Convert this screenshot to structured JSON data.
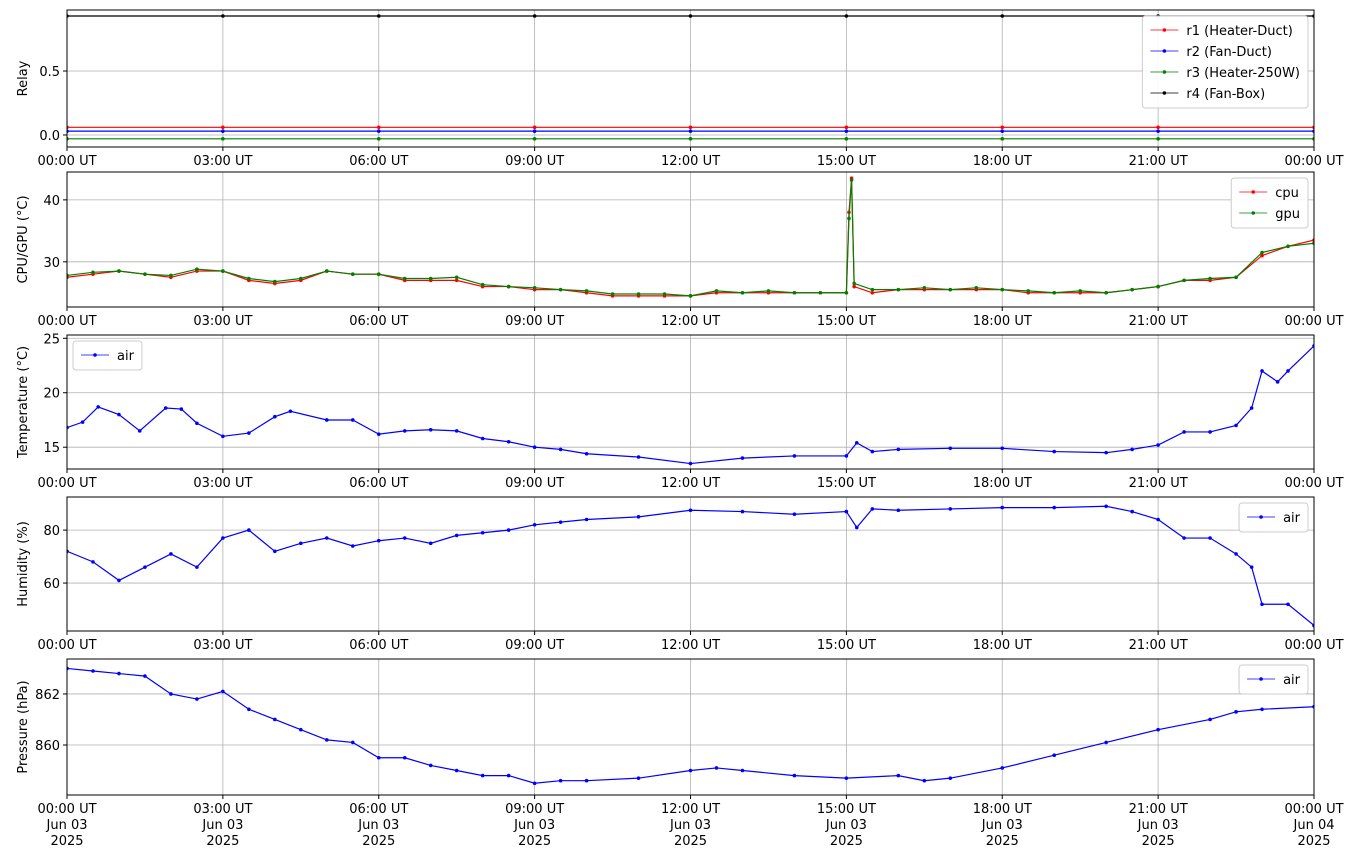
{
  "chart_data": [
    {
      "type": "line",
      "ylabel": "Relay",
      "xlim": [
        0,
        24
      ],
      "ylim": [
        -0.094,
        0.977
      ],
      "yticks": [
        {
          "value": 0,
          "label": "0.0"
        },
        0.5
      ],
      "grid": true,
      "legend": "upper right",
      "xticks": [
        {
          "value": 0,
          "label": "00:00 UT"
        },
        {
          "value": 3,
          "label": "03:00 UT"
        },
        {
          "value": 6,
          "label": "06:00 UT"
        },
        {
          "value": 9,
          "label": "09:00 UT"
        },
        {
          "value": 12,
          "label": "12:00 UT"
        },
        {
          "value": 15,
          "label": "15:00 UT"
        },
        {
          "value": 18,
          "label": "18:00 UT"
        },
        {
          "value": 21,
          "label": "21:00 UT"
        },
        {
          "value": 24,
          "label": "00:00 UT"
        }
      ],
      "x": [
        0,
        3,
        6,
        9,
        12,
        15,
        18,
        21,
        24
      ],
      "series": [
        {
          "name": "r1 (Heater-Duct)",
          "color": "#ff0000",
          "values": [
            0.06,
            0.06,
            0.06,
            0.06,
            0.06,
            0.06,
            0.06,
            0.06,
            0.06
          ]
        },
        {
          "name": "r2 (Fan-Duct)",
          "color": "#0000ff",
          "values": [
            0.03,
            0.03,
            0.03,
            0.03,
            0.03,
            0.03,
            0.03,
            0.03,
            0.03
          ]
        },
        {
          "name": "r3 (Heater-250W)",
          "color": "#008000",
          "values": [
            -0.03,
            -0.03,
            -0.03,
            -0.03,
            -0.03,
            -0.03,
            -0.03,
            -0.03,
            -0.03
          ]
        },
        {
          "name": "r4 (Fan-Box)",
          "color": "#000000",
          "values": [
            0.93,
            0.93,
            0.93,
            0.93,
            0.93,
            0.93,
            0.93,
            0.93,
            0.93
          ]
        }
      ]
    },
    {
      "type": "line",
      "ylabel": "CPU/GPU (°C)",
      "xlim": [
        0,
        24
      ],
      "ylim": [
        22.7,
        44.5
      ],
      "yticks": [
        30,
        40
      ],
      "grid": true,
      "legend": "upper right",
      "xticks": [
        {
          "value": 0,
          "label": "00:00 UT"
        },
        {
          "value": 3,
          "label": "03:00 UT"
        },
        {
          "value": 6,
          "label": "06:00 UT"
        },
        {
          "value": 9,
          "label": "09:00 UT"
        },
        {
          "value": 12,
          "label": "12:00 UT"
        },
        {
          "value": 15,
          "label": "15:00 UT"
        },
        {
          "value": 18,
          "label": "18:00 UT"
        },
        {
          "value": 21,
          "label": "21:00 UT"
        },
        {
          "value": 24,
          "label": "00:00 UT"
        }
      ],
      "x": [
        0,
        0.5,
        1,
        1.5,
        2,
        2.5,
        3,
        3.5,
        4,
        4.5,
        5,
        5.5,
        6,
        6.5,
        7,
        7.5,
        8,
        8.5,
        9,
        9.5,
        10,
        10.5,
        11,
        11.5,
        12,
        12.5,
        13,
        13.5,
        14,
        14.5,
        15,
        15.05,
        15.1,
        15.15,
        15.5,
        16,
        16.5,
        17,
        17.5,
        18,
        18.5,
        19,
        19.5,
        20,
        20.5,
        21,
        21.5,
        22,
        22.5,
        23,
        23.5,
        24
      ],
      "series": [
        {
          "name": "cpu",
          "color": "#ff0000",
          "values": [
            27.5,
            28,
            28.5,
            28,
            27.5,
            28.5,
            28.5,
            27,
            26.5,
            27,
            28.5,
            28,
            28,
            27,
            27,
            27,
            26,
            26,
            25.5,
            25.5,
            25,
            24.5,
            24.5,
            24.5,
            24.5,
            25,
            25,
            25,
            25,
            25,
            25,
            38,
            43.5,
            26,
            25,
            25.5,
            25.5,
            25.5,
            25.5,
            25.5,
            25,
            25,
            25,
            25,
            25.5,
            26,
            27,
            27,
            27.5,
            31,
            32.5,
            33.5
          ]
        },
        {
          "name": "gpu",
          "color": "#008000",
          "values": [
            27.8,
            28.3,
            28.5,
            28,
            27.8,
            28.8,
            28.5,
            27.3,
            26.8,
            27.3,
            28.5,
            28,
            28,
            27.3,
            27.3,
            27.5,
            26.3,
            26,
            25.8,
            25.5,
            25.3,
            24.8,
            24.8,
            24.8,
            24.5,
            25.3,
            25,
            25.3,
            25,
            25,
            25,
            37,
            43.2,
            26.5,
            25.5,
            25.5,
            25.8,
            25.5,
            25.8,
            25.5,
            25.3,
            25,
            25.3,
            25,
            25.5,
            26,
            27,
            27.3,
            27.5,
            31.5,
            32.5,
            33
          ]
        }
      ]
    },
    {
      "type": "line",
      "ylabel": "Temperature (°C)",
      "xlim": [
        0,
        24
      ],
      "ylim": [
        13.0,
        25.3
      ],
      "yticks": [
        15,
        20,
        25
      ],
      "grid": true,
      "legend": "upper left",
      "xticks": [
        {
          "value": 0,
          "label": "00:00 UT"
        },
        {
          "value": 3,
          "label": "03:00 UT"
        },
        {
          "value": 6,
          "label": "06:00 UT"
        },
        {
          "value": 9,
          "label": "09:00 UT"
        },
        {
          "value": 12,
          "label": "12:00 UT"
        },
        {
          "value": 15,
          "label": "15:00 UT"
        },
        {
          "value": 18,
          "label": "18:00 UT"
        },
        {
          "value": 21,
          "label": "21:00 UT"
        },
        {
          "value": 24,
          "label": "00:00 UT"
        }
      ],
      "x": [
        0,
        0.3,
        0.6,
        1,
        1.4,
        1.9,
        2.2,
        2.5,
        3,
        3.5,
        4,
        4.3,
        5,
        5.5,
        6,
        6.5,
        7,
        7.5,
        8,
        8.5,
        9,
        9.5,
        10,
        11,
        12,
        13,
        14,
        15,
        15.2,
        15.5,
        16,
        17,
        18,
        19,
        20,
        20.5,
        21,
        21.5,
        22,
        22.5,
        22.8,
        23,
        23.3,
        23.5,
        24
      ],
      "series": [
        {
          "name": "air",
          "color": "#0000ff",
          "values": [
            16.8,
            17.3,
            18.7,
            18.0,
            16.5,
            18.6,
            18.5,
            17.2,
            16.0,
            16.3,
            17.8,
            18.3,
            17.5,
            17.5,
            16.2,
            16.5,
            16.6,
            16.5,
            15.8,
            15.5,
            15.0,
            14.8,
            14.4,
            14.1,
            13.5,
            14.0,
            14.2,
            14.2,
            15.4,
            14.6,
            14.8,
            14.9,
            14.9,
            14.6,
            14.5,
            14.8,
            15.2,
            16.4,
            16.4,
            17.0,
            18.6,
            22.0,
            21.0,
            22.0,
            24.3
          ]
        }
      ]
    },
    {
      "type": "line",
      "ylabel": "Humidity (%)",
      "xlim": [
        0,
        24
      ],
      "ylim": [
        41.9,
        92.5
      ],
      "yticks": [
        60,
        80
      ],
      "grid": true,
      "legend": "upper right",
      "xticks": [
        {
          "value": 0,
          "label": "00:00 UT"
        },
        {
          "value": 3,
          "label": "03:00 UT"
        },
        {
          "value": 6,
          "label": "06:00 UT"
        },
        {
          "value": 9,
          "label": "09:00 UT"
        },
        {
          "value": 12,
          "label": "12:00 UT"
        },
        {
          "value": 15,
          "label": "15:00 UT"
        },
        {
          "value": 18,
          "label": "18:00 UT"
        },
        {
          "value": 21,
          "label": "21:00 UT"
        },
        {
          "value": 24,
          "label": "00:00 UT"
        }
      ],
      "x": [
        0,
        0.5,
        1,
        1.5,
        2,
        2.5,
        3,
        3.5,
        4,
        4.5,
        5,
        5.5,
        6,
        6.5,
        7,
        7.5,
        8,
        8.5,
        9,
        9.5,
        10,
        11,
        12,
        13,
        14,
        15,
        15.2,
        15.5,
        16,
        17,
        18,
        19,
        20,
        20.5,
        21,
        21.5,
        22,
        22.5,
        22.8,
        23,
        23.5,
        24
      ],
      "series": [
        {
          "name": "air",
          "color": "#0000ff",
          "values": [
            72,
            68,
            61,
            66,
            71,
            66,
            77,
            80,
            72,
            75,
            77,
            74,
            76,
            77,
            75,
            78,
            79,
            80,
            82,
            83,
            84,
            85,
            87.5,
            87,
            86,
            87,
            81,
            88,
            87.5,
            88,
            88.5,
            88.5,
            89,
            87,
            84,
            77,
            77,
            71,
            66,
            52,
            52,
            44
          ]
        }
      ]
    },
    {
      "type": "line",
      "ylabel": "Pressure (hPa)",
      "xlim": [
        0,
        24
      ],
      "ylim": [
        858.04,
        863.37
      ],
      "yticks": [
        860,
        862
      ],
      "grid": true,
      "legend": "upper right",
      "xticks": [
        {
          "value": 0,
          "label": "00:00 UT\nJun 03\n2025"
        },
        {
          "value": 3,
          "label": "03:00 UT\nJun 03\n2025"
        },
        {
          "value": 6,
          "label": "06:00 UT\nJun 03\n2025"
        },
        {
          "value": 9,
          "label": "09:00 UT\nJun 03\n2025"
        },
        {
          "value": 12,
          "label": "12:00 UT\nJun 03\n2025"
        },
        {
          "value": 15,
          "label": "15:00 UT\nJun 03\n2025"
        },
        {
          "value": 18,
          "label": "18:00 UT\nJun 03\n2025"
        },
        {
          "value": 21,
          "label": "21:00 UT\nJun 03\n2025"
        },
        {
          "value": 24,
          "label": "00:00 UT\nJun 04\n2025"
        }
      ],
      "x": [
        0,
        0.5,
        1,
        1.5,
        2,
        2.5,
        3,
        3.5,
        4,
        4.5,
        5,
        5.5,
        6,
        6.5,
        7,
        7.5,
        8,
        8.5,
        9,
        9.5,
        10,
        11,
        12,
        12.5,
        13,
        14,
        15,
        16,
        16.5,
        17,
        18,
        19,
        20,
        21,
        22,
        22.5,
        23,
        24
      ],
      "series": [
        {
          "name": "air",
          "color": "#0000ff",
          "values": [
            863,
            862.9,
            862.8,
            862.7,
            862,
            861.8,
            862.1,
            861.4,
            861,
            860.6,
            860.2,
            860.1,
            859.5,
            859.5,
            859.2,
            859,
            858.8,
            858.8,
            858.5,
            858.6,
            858.6,
            858.7,
            859,
            859.1,
            859,
            858.8,
            858.7,
            858.8,
            858.6,
            858.7,
            859.1,
            859.6,
            860.1,
            860.6,
            861,
            861.3,
            861.4,
            861.5
          ]
        }
      ]
    }
  ]
}
